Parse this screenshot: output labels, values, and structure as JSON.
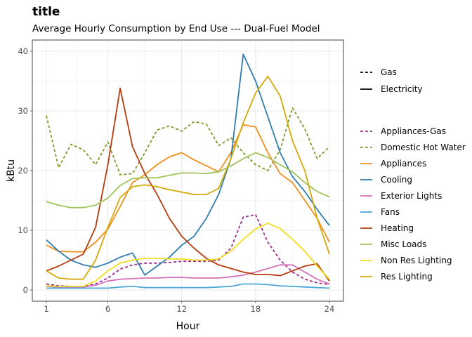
{
  "chart_data": {
    "type": "line",
    "title": "title",
    "subtitle": "Average Hourly Consumption by End Use --- Dual-Fuel Model",
    "xlabel": "Hour",
    "ylabel": "kBtu",
    "xlim": [
      1,
      24
    ],
    "ylim": [
      0,
      40
    ],
    "x_ticks": [
      1,
      6,
      12,
      18,
      24
    ],
    "y_ticks": [
      0,
      10,
      20,
      30,
      40
    ],
    "grid": true,
    "legend_placement": "right",
    "linetype_legend": [
      {
        "label": "Gas",
        "dash": "dashed"
      },
      {
        "label": "Electricity",
        "dash": "solid"
      }
    ],
    "x": [
      1,
      2,
      3,
      4,
      5,
      6,
      7,
      8,
      9,
      10,
      11,
      12,
      13,
      14,
      15,
      16,
      17,
      18,
      19,
      20,
      21,
      22,
      23,
      24
    ],
    "series": [
      {
        "name": "Appliances-Gas",
        "color": "#9e2a8f",
        "dash": "dashed",
        "values": [
          1.0,
          0.7,
          0.6,
          0.6,
          1.0,
          2.0,
          3.5,
          4.2,
          4.5,
          4.5,
          4.6,
          4.8,
          4.8,
          4.8,
          5.0,
          7.0,
          12.2,
          12.6,
          8.0,
          5.0,
          3.0,
          1.8,
          1.2,
          0.9
        ]
      },
      {
        "name": "Domestic Hot Water",
        "color": "#7a9a2a",
        "dash": "dashed",
        "values": [
          29.2,
          20.5,
          24.4,
          23.5,
          21.0,
          24.8,
          19.3,
          19.5,
          23.0,
          26.8,
          27.5,
          26.6,
          28.2,
          27.8,
          24.2,
          25.5,
          23.0,
          21.0,
          20.0,
          23.5,
          30.5,
          27.0,
          22.0,
          24.0
        ]
      },
      {
        "name": "Appliances",
        "color": "#f28e1c",
        "dash": "solid",
        "values": [
          7.5,
          6.5,
          6.4,
          6.4,
          8.0,
          10.2,
          14.0,
          18.0,
          19.3,
          21.0,
          22.3,
          23.0,
          21.8,
          20.8,
          19.8,
          23.0,
          27.7,
          27.3,
          23.0,
          19.5,
          18.0,
          15.0,
          12.0,
          8.0
        ]
      },
      {
        "name": "Cooling",
        "color": "#2e7db0",
        "dash": "solid",
        "values": [
          8.4,
          6.5,
          5.0,
          4.2,
          3.8,
          4.5,
          5.5,
          6.2,
          2.5,
          4.0,
          5.5,
          7.5,
          9.0,
          12.0,
          16.0,
          22.0,
          39.5,
          35.0,
          29.0,
          23.0,
          19.0,
          16.5,
          13.5,
          10.8
        ]
      },
      {
        "name": "Exterior Lights",
        "color": "#d471b8",
        "dash": "solid",
        "values": [
          0.6,
          0.5,
          0.5,
          0.5,
          0.8,
          1.5,
          1.8,
          1.9,
          2.0,
          2.0,
          2.1,
          2.1,
          2.0,
          2.0,
          2.0,
          2.2,
          2.5,
          3.0,
          3.6,
          4.2,
          4.2,
          3.0,
          1.8,
          1.0
        ]
      },
      {
        "name": "Fans",
        "color": "#4aa8d8",
        "dash": "solid",
        "values": [
          0.3,
          0.3,
          0.3,
          0.3,
          0.3,
          0.3,
          0.5,
          0.6,
          0.4,
          0.4,
          0.4,
          0.4,
          0.4,
          0.4,
          0.5,
          0.6,
          1.0,
          1.0,
          0.9,
          0.7,
          0.6,
          0.5,
          0.4,
          0.3
        ]
      },
      {
        "name": "Heating",
        "color": "#b53a0c",
        "dash": "solid",
        "values": [
          3.2,
          4.0,
          5.0,
          6.0,
          10.5,
          21.0,
          33.8,
          24.0,
          19.5,
          16.0,
          12.0,
          9.0,
          7.0,
          5.3,
          4.2,
          3.6,
          3.0,
          2.6,
          2.6,
          2.4,
          3.2,
          4.0,
          4.4,
          1.5
        ]
      },
      {
        "name": "Misc Loads",
        "color": "#a0c45a",
        "dash": "solid",
        "values": [
          14.8,
          14.2,
          13.8,
          13.8,
          14.2,
          15.4,
          17.5,
          18.7,
          18.8,
          18.8,
          19.2,
          19.6,
          19.6,
          19.5,
          19.8,
          20.8,
          22.0,
          23.0,
          22.2,
          21.0,
          19.8,
          18.0,
          16.5,
          15.6
        ]
      },
      {
        "name": "Non Res Lighting",
        "color": "#f2dc1e",
        "dash": "solid",
        "values": [
          0.7,
          0.6,
          0.6,
          0.6,
          1.5,
          3.2,
          4.5,
          5.0,
          5.3,
          5.3,
          5.2,
          5.2,
          5.0,
          5.0,
          5.2,
          6.5,
          8.5,
          10.2,
          11.2,
          10.3,
          8.5,
          6.5,
          4.0,
          1.8
        ]
      },
      {
        "name": "Res Lighting",
        "color": "#d4aa0a",
        "dash": "solid",
        "values": [
          3.2,
          2.0,
          1.8,
          1.8,
          5.0,
          10.5,
          15.5,
          17.3,
          17.6,
          17.3,
          16.8,
          16.4,
          16.0,
          16.0,
          17.0,
          22.0,
          28.0,
          33.0,
          35.8,
          32.5,
          25.0,
          20.0,
          12.0,
          6.0
        ]
      }
    ]
  }
}
